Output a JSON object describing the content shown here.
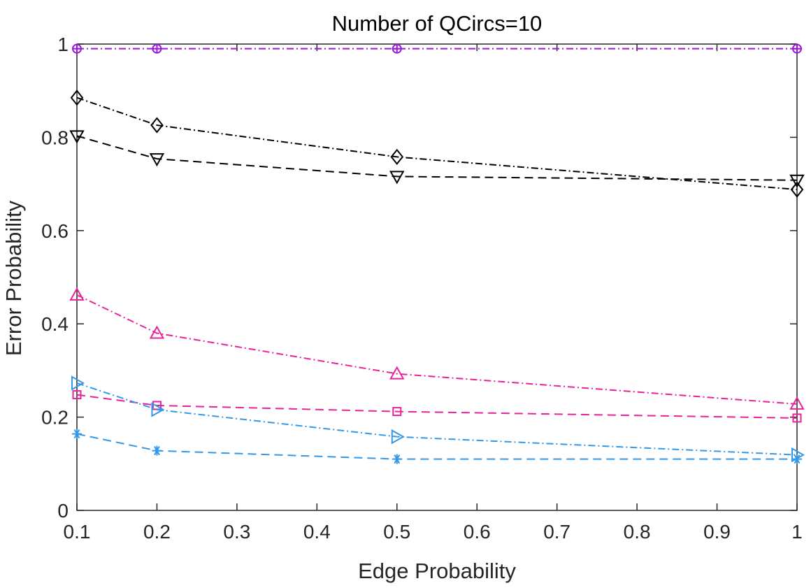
{
  "chart_data": {
    "type": "line",
    "title": "Number of QCircs=10",
    "xlabel": "Edge Probability",
    "ylabel": "Error Probability",
    "xlim": [
      0.1,
      1
    ],
    "ylim": [
      0,
      1
    ],
    "xticks": [
      0.1,
      0.2,
      0.3,
      0.4,
      0.5,
      0.6,
      0.7,
      0.8,
      0.9,
      1
    ],
    "xtick_labels": [
      "0.1",
      "0.2",
      "0.3",
      "0.4",
      "0.5",
      "0.6",
      "0.7",
      "0.8",
      "0.9",
      "1"
    ],
    "yticks": [
      0,
      0.2,
      0.4,
      0.6,
      0.8,
      1
    ],
    "ytick_labels": [
      "0",
      "0.2",
      "0.4",
      "0.6",
      "0.8",
      "1"
    ],
    "grid": false,
    "x": [
      0.1,
      0.2,
      0.5,
      1
    ],
    "series": [
      {
        "id": "purple-circle-plus",
        "color": "#9b19d6",
        "dash": "10,4,2,4",
        "marker": "circle-plus",
        "values": [
          0.99,
          0.99,
          0.99,
          0.99
        ]
      },
      {
        "id": "black-diamond",
        "color": "#000000",
        "dash": "10,4,2,4",
        "marker": "diamond",
        "values": [
          0.885,
          0.826,
          0.758,
          0.688
        ]
      },
      {
        "id": "black-down-triangle",
        "color": "#000000",
        "dash": "12,7",
        "marker": "triangle-down",
        "values": [
          0.803,
          0.754,
          0.716,
          0.708
        ]
      },
      {
        "id": "magenta-up-triangle",
        "color": "#e8229a",
        "dash": "10,4,2,4",
        "marker": "triangle-up",
        "values": [
          0.462,
          0.38,
          0.293,
          0.228
        ]
      },
      {
        "id": "magenta-square",
        "color": "#e8229a",
        "dash": "12,7",
        "marker": "square",
        "values": [
          0.248,
          0.225,
          0.212,
          0.198
        ]
      },
      {
        "id": "blue-right-triangle",
        "color": "#3498e8",
        "dash": "10,4,2,4",
        "marker": "triangle-right",
        "values": [
          0.273,
          0.216,
          0.158,
          0.119
        ]
      },
      {
        "id": "blue-asterisk",
        "color": "#3498e8",
        "dash": "12,7",
        "marker": "asterisk",
        "values": [
          0.164,
          0.128,
          0.11,
          0.11
        ]
      }
    ]
  }
}
